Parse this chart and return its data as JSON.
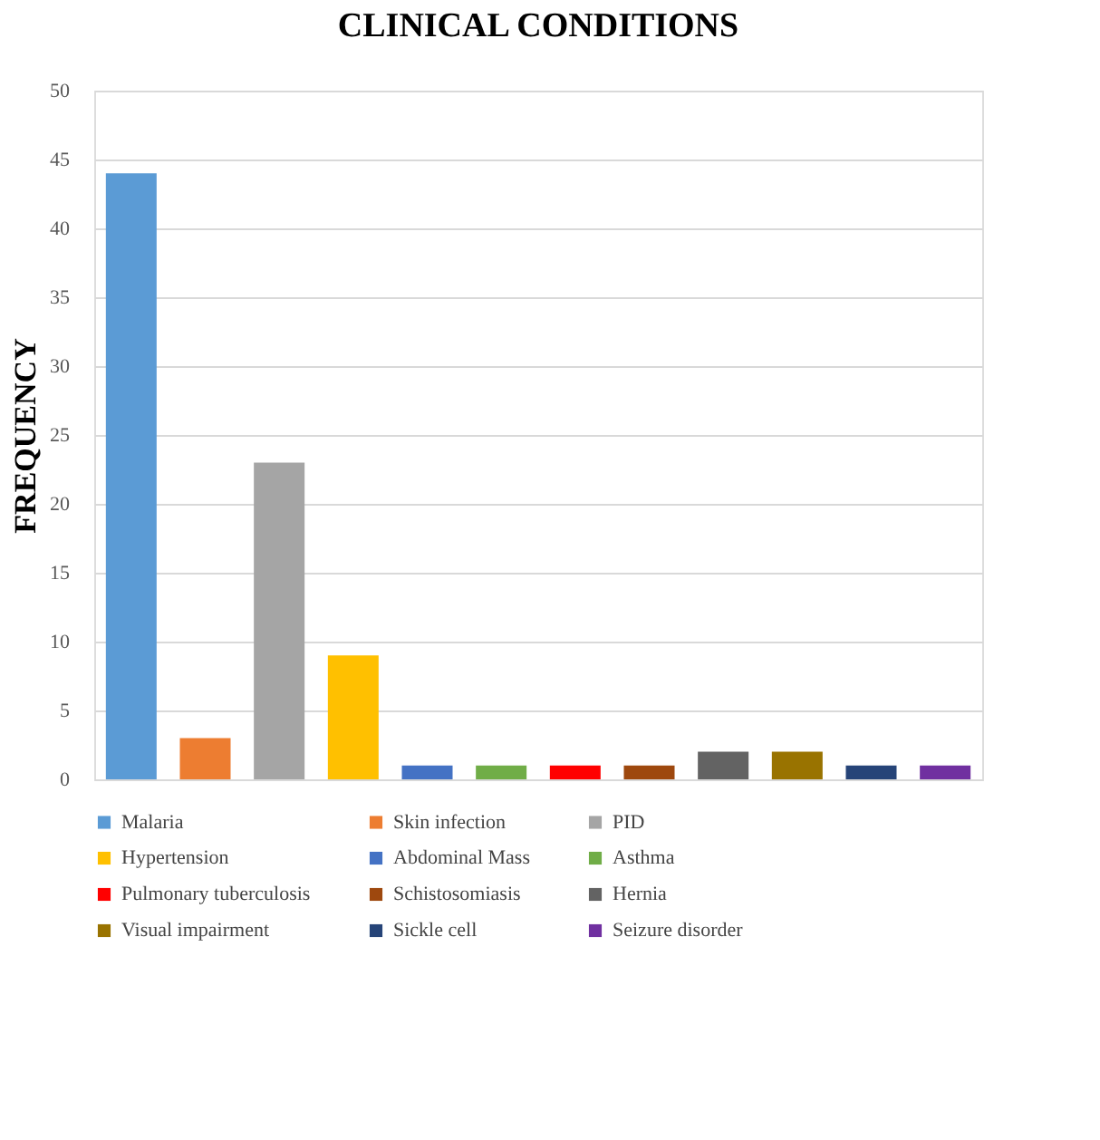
{
  "chart_data": {
    "type": "bar",
    "title": "CLINICAL CONDITIONS",
    "ylabel": "FREQUENCY",
    "categories": [
      null,
      null,
      null,
      null,
      null,
      null,
      null,
      null,
      null,
      null,
      null,
      null
    ],
    "series": [
      {
        "name": "Malaria",
        "color": "#5b9bd5",
        "values": [
          44,
          null,
          null,
          null,
          null,
          null,
          null,
          null,
          null,
          null,
          null,
          null
        ]
      },
      {
        "name": "Skin infection",
        "color": "#ed7d31",
        "values": [
          null,
          3,
          null,
          null,
          null,
          null,
          null,
          null,
          null,
          null,
          null,
          null
        ]
      },
      {
        "name": "PID",
        "color": "#a5a5a5",
        "values": [
          null,
          null,
          23,
          null,
          null,
          null,
          null,
          null,
          null,
          null,
          null,
          null
        ]
      },
      {
        "name": "Hypertension",
        "color": "#ffc000",
        "values": [
          null,
          null,
          null,
          9,
          null,
          null,
          null,
          null,
          null,
          null,
          null,
          null
        ]
      },
      {
        "name": "Abdominal Mass",
        "color": "#4472c4",
        "values": [
          null,
          null,
          null,
          null,
          1,
          null,
          null,
          null,
          null,
          null,
          null,
          null
        ]
      },
      {
        "name": "Asthma",
        "color": "#70ad47",
        "values": [
          null,
          null,
          null,
          null,
          null,
          1,
          null,
          null,
          null,
          null,
          null,
          null
        ]
      },
      {
        "name": "Pulmonary tuberculosis",
        "color": "#ff0000",
        "values": [
          null,
          null,
          null,
          null,
          null,
          null,
          1,
          null,
          null,
          null,
          null,
          null
        ]
      },
      {
        "name": "Schistosomiasis",
        "color": "#9e480e",
        "values": [
          null,
          null,
          null,
          null,
          null,
          null,
          null,
          1,
          null,
          null,
          null,
          null
        ]
      },
      {
        "name": "Hernia",
        "color": "#636363",
        "values": [
          null,
          null,
          null,
          null,
          null,
          null,
          null,
          null,
          2,
          null,
          null,
          null
        ]
      },
      {
        "name": "Visual impairment",
        "color": "#997300",
        "values": [
          null,
          null,
          null,
          null,
          null,
          null,
          null,
          null,
          null,
          2,
          null,
          null
        ]
      },
      {
        "name": "Sickle cell",
        "color": "#264478",
        "values": [
          null,
          null,
          null,
          null,
          null,
          null,
          null,
          null,
          null,
          null,
          1,
          null
        ]
      },
      {
        "name": "Seizure disorder",
        "color": "#7030a0",
        "values": [
          null,
          null,
          null,
          null,
          null,
          null,
          null,
          null,
          null,
          null,
          null,
          1
        ]
      }
    ],
    "ylim": [
      0,
      50
    ],
    "yticks": [
      0,
      5,
      10,
      15,
      20,
      25,
      30,
      35,
      40,
      45,
      50
    ],
    "grid": "y",
    "legend": "bottom",
    "tick_labels": "y"
  }
}
